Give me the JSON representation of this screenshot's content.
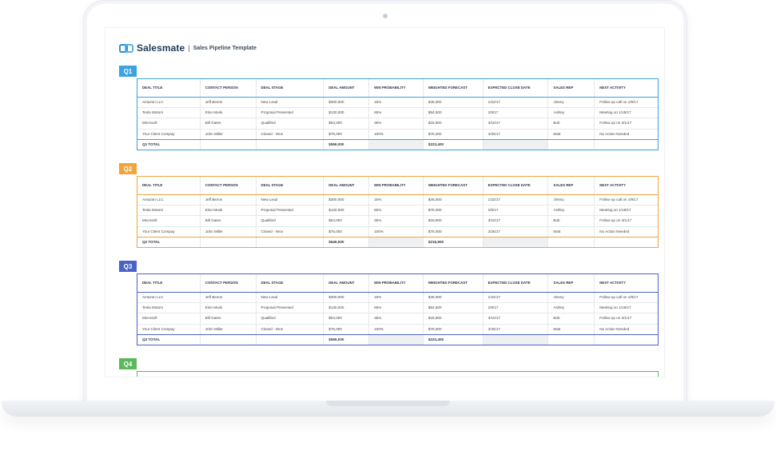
{
  "app": {
    "brand_name": "Salesmate",
    "separator": "|",
    "title": "Sales Pipeline Template"
  },
  "colors": {
    "q1": "#3aa3e0",
    "q2": "#f0a43a",
    "q3": "#4a63c9",
    "q4": "#5cb85c"
  },
  "columns": [
    "DEAL TITLE",
    "CONTACT PERSON",
    "DEAL STAGE",
    "DEAL AMOUNT",
    "WIN PROBABILITY",
    "WEIGHTED FORECAST",
    "EXPECTED CLOSE DATE",
    "SALES REP",
    "NEXT ACTIVITY"
  ],
  "quarters": [
    {
      "label": "Q1",
      "rows": [
        [
          "Amazon LLC",
          "Jeff Bezos",
          "New Lead",
          "$300,000",
          "15%",
          "$45,000",
          "1/22/17",
          "Jimmy",
          "Follow up call on 1/9/17"
        ],
        [
          "Tesla Motors",
          "Elon Musk",
          "Proposal Presented",
          "$130,000",
          "65%",
          "$84,500",
          "2/5/17",
          "Ashley",
          "Meeting on 1/18/17"
        ],
        [
          "Microsoft",
          "Bill Gates",
          "Qualified",
          "$54,000",
          "35%",
          "$18,900",
          "3/10/17",
          "Bob",
          "Follow up on 3/1/17"
        ],
        [
          "Your Client Compay",
          "John Miller",
          "Closed - Won",
          "$75,000",
          "100%",
          "$75,000",
          "3/25/17",
          "Matt",
          "No Action Needed"
        ]
      ],
      "total": {
        "label": "Q1 TOTAL",
        "amount": "$559,000",
        "forecast": "$223,400"
      }
    },
    {
      "label": "Q2",
      "rows": [
        [
          "Amazon LLC",
          "Jeff Bezos",
          "New Lead",
          "$300,000",
          "15%",
          "$45,000",
          "1/22/17",
          "Jimmy",
          "Follow up call on 1/9/17"
        ],
        [
          "Tesla Motors",
          "Elon Musk",
          "Proposal Presented",
          "$120,000",
          "65%",
          "$78,000",
          "2/5/17",
          "Ashley",
          "Meeting on 1/18/17"
        ],
        [
          "Microsoft",
          "Bill Gates",
          "Qualified",
          "$54,000",
          "35%",
          "$18,900",
          "3/10/17",
          "Bob",
          "Follow up on 3/1/17"
        ],
        [
          "Your Client Compay",
          "John Miller",
          "Closed - Won",
          "$75,000",
          "100%",
          "$75,000",
          "3/25/17",
          "Matt",
          "No Action Needed"
        ]
      ],
      "total": {
        "label": "Q2 TOTAL",
        "amount": "$549,000",
        "forecast": "$216,900"
      }
    },
    {
      "label": "Q3",
      "rows": [
        [
          "Amazon LLC",
          "Jeff Bezos",
          "New Lead",
          "$300,000",
          "15%",
          "$45,000",
          "1/22/17",
          "Jimmy",
          "Follow up call on 1/9/17"
        ],
        [
          "Tesla Motors",
          "Elon Musk",
          "Proposal Presented",
          "$130,000",
          "65%",
          "$84,500",
          "2/5/17",
          "Ashley",
          "Meeting on 1/18/17"
        ],
        [
          "Microsoft",
          "Bill Gates",
          "Qualified",
          "$54,000",
          "35%",
          "$18,900",
          "3/10/17",
          "Bob",
          "Follow up on 3/1/17"
        ],
        [
          "Your Client Compay",
          "John Miller",
          "Closed - Won",
          "$75,000",
          "100%",
          "$75,000",
          "3/25/17",
          "Matt",
          "No Action Needed"
        ]
      ],
      "total": {
        "label": "Q3 TOTAL",
        "amount": "$559,000",
        "forecast": "$223,400"
      }
    },
    {
      "label": "Q4",
      "rows": [],
      "total": null
    }
  ]
}
